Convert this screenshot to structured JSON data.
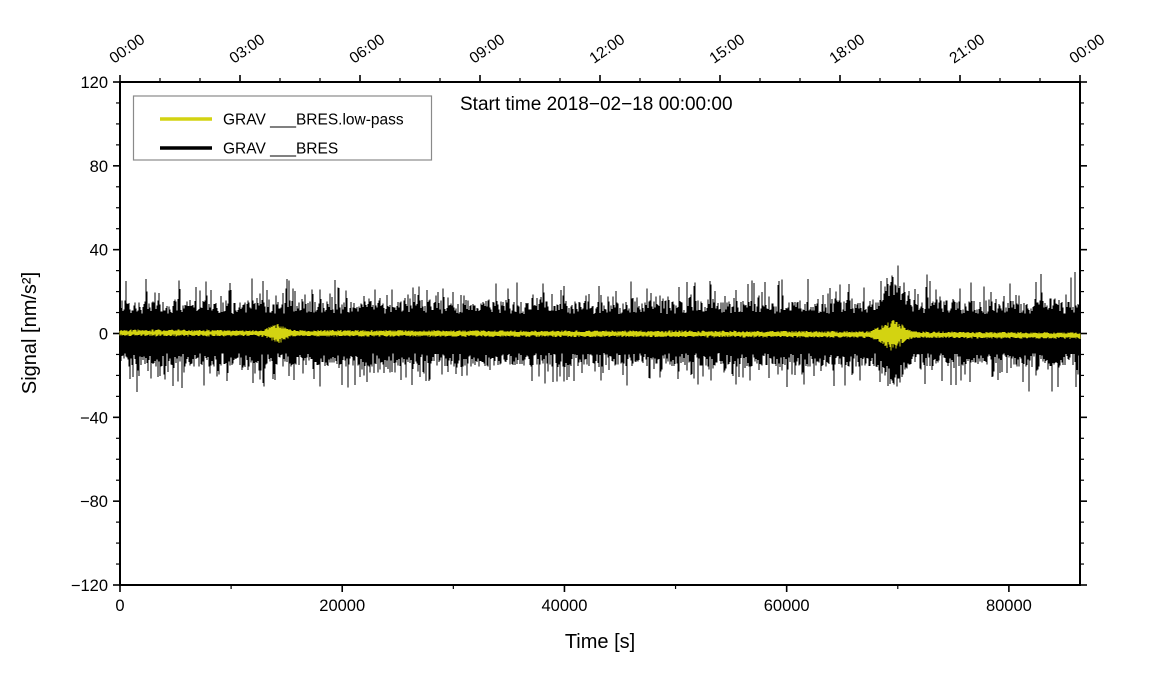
{
  "figure": {
    "background": "#ffffff",
    "legend": {
      "position": "top-left",
      "entries": [
        {
          "label": "GRAV ___BRES.low-pass",
          "color": "#d3d311",
          "icon": "line-sample"
        },
        {
          "label": "GRAV ___BRES",
          "color": "#000000",
          "icon": "line-sample"
        }
      ]
    }
  },
  "chart_data": {
    "type": "line",
    "title": "Start time 2018−02−18 00:00:00",
    "xlabel": "Time [s]",
    "ylabel": "Signal [nm/s²]",
    "xlim": [
      0,
      86400
    ],
    "ylim": [
      -120,
      120
    ],
    "grid": false,
    "legend_position": "top-left",
    "axes": {
      "bottom": {
        "major": [
          0,
          20000,
          40000,
          60000,
          80000
        ],
        "minor_step": 10000
      },
      "top": {
        "labels": [
          "00:00",
          "03:00",
          "06:00",
          "09:00",
          "12:00",
          "15:00",
          "18:00",
          "21:00",
          "00:00"
        ],
        "major_step_s": 10800,
        "minor_step_s": 3600
      },
      "left": {
        "major_step": 40,
        "minor_step": 10
      }
    },
    "series": [
      {
        "name": "GRAV ___BRES",
        "color": "#000000",
        "kind": "broadband-noise",
        "description": "raw gravimeter residual, zero-mean noise band",
        "core_amplitude": 13,
        "spike_envelope": [
          [
            0,
            29
          ],
          [
            6000,
            27
          ],
          [
            14000,
            27
          ],
          [
            20000,
            26
          ],
          [
            30000,
            24
          ],
          [
            40000,
            25
          ],
          [
            50000,
            25
          ],
          [
            60000,
            26
          ],
          [
            67500,
            27
          ],
          [
            69500,
            38
          ],
          [
            71500,
            29
          ],
          [
            76000,
            26
          ],
          [
            80000,
            27
          ],
          [
            83500,
            31
          ],
          [
            86400,
            29
          ]
        ]
      },
      {
        "name": "GRAV ___BRES.low-pass",
        "color": "#d3d311",
        "kind": "lowpass-noise",
        "description": "low-pass filtered residual, stays near zero",
        "base_amplitude": 1.6,
        "mean_drift": [
          [
            0,
            0.3
          ],
          [
            30000,
            0.0
          ],
          [
            60000,
            -0.3
          ],
          [
            86400,
            -1.0
          ]
        ],
        "bursts": [
          {
            "t": 14200,
            "sigma": 600,
            "amp": 3.5
          },
          {
            "t": 69500,
            "sigma": 900,
            "amp": 6.5
          }
        ]
      }
    ]
  }
}
